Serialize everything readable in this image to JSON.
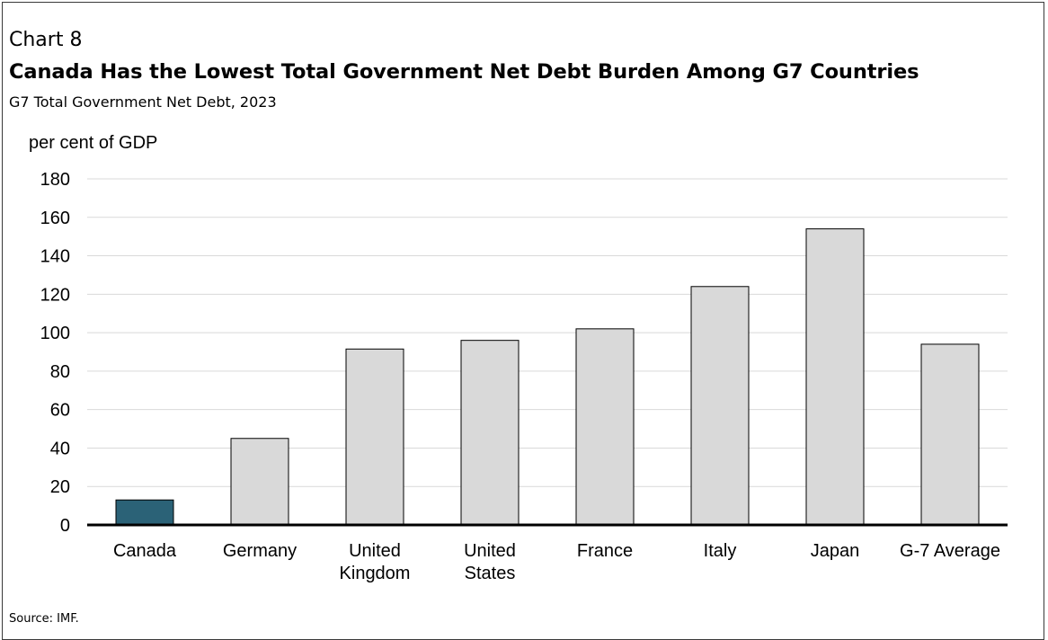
{
  "header": {
    "label": "Chart 8",
    "title": "Canada Has the Lowest Total Government Net Debt Burden Among G7 Countries",
    "subtitle": "G7 Total Government Net Debt, 2023"
  },
  "footer": {
    "source": "Source: IMF."
  },
  "colors": {
    "highlight": "#2b6277",
    "bar": "#d9d9d9",
    "bar_stroke": "#000000",
    "grid": "#d9d9d9"
  },
  "chart_data": {
    "type": "bar",
    "ylabel": "per cent of GDP",
    "ylim": [
      0,
      180
    ],
    "yticks": [
      0,
      20,
      40,
      60,
      80,
      100,
      120,
      140,
      160,
      180
    ],
    "grid": true,
    "categories": [
      [
        "Canada"
      ],
      [
        "Germany"
      ],
      [
        "United",
        "Kingdom"
      ],
      [
        "United",
        "States"
      ],
      [
        "France"
      ],
      [
        "Italy"
      ],
      [
        "Japan"
      ],
      [
        "G-7 Average"
      ]
    ],
    "values": [
      13,
      45,
      91.5,
      96,
      102,
      124,
      154,
      94
    ],
    "highlight_index": 0
  }
}
